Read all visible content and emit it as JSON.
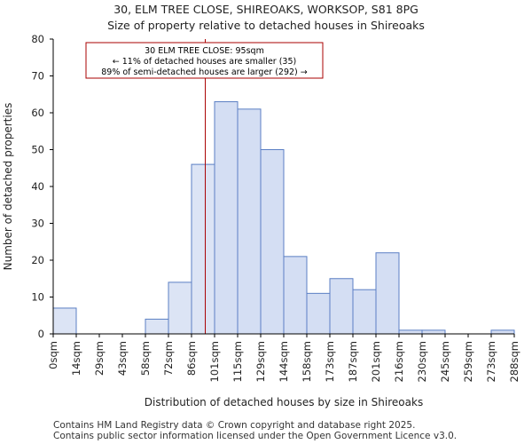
{
  "title_line1": "30, ELM TREE CLOSE, SHIREOAKS, WORKSOP, S81 8PG",
  "title_line2": "Size of property relative to detached houses in Shireoaks",
  "footer_line1": "Contains HM Land Registry data © Crown copyright and database right 2025.",
  "footer_line2": "Contains public sector information licensed under the Open Government Licence v3.0.",
  "chart_data": {
    "type": "bar",
    "title": "Size of property relative to detached houses in Shireoaks",
    "xlabel": "Distribution of detached houses by size in Shireoaks",
    "ylabel": "Number of detached properties",
    "x_tick_labels": [
      "0sqm",
      "14sqm",
      "29sqm",
      "43sqm",
      "58sqm",
      "72sqm",
      "86sqm",
      "101sqm",
      "115sqm",
      "129sqm",
      "144sqm",
      "158sqm",
      "173sqm",
      "187sqm",
      "201sqm",
      "216sqm",
      "230sqm",
      "245sqm",
      "259sqm",
      "273sqm",
      "288sqm"
    ],
    "bin_edges": [
      0,
      14.4,
      28.8,
      43.2,
      57.6,
      72,
      86.4,
      100.8,
      115.2,
      129.6,
      144,
      158.4,
      172.8,
      187.2,
      201.6,
      216,
      230.4,
      244.8,
      259.2,
      273.6,
      288
    ],
    "values": [
      7,
      0,
      0,
      0,
      4,
      14,
      46,
      63,
      61,
      50,
      21,
      11,
      15,
      12,
      22,
      1,
      1,
      0,
      0,
      1
    ],
    "highlight_bins": [
      7,
      8,
      9,
      10,
      11,
      12,
      13,
      14,
      15,
      16,
      17,
      18,
      19
    ],
    "ylim": [
      0,
      80
    ],
    "yticks": [
      0,
      10,
      20,
      30,
      40,
      50,
      60,
      70,
      80
    ],
    "grid": false,
    "colors": {
      "bar_fill": "#dce4f5",
      "bar_fill_highlight": "#d4def3",
      "bar_stroke": "#5b7fc4",
      "marker": "#aa0000",
      "axis": "#000000"
    },
    "property_marker": {
      "value": 95
    },
    "annotation": {
      "lines": [
        "30 ELM TREE CLOSE: 95sqm",
        "← 11% of detached houses are smaller (35)",
        "89% of semi-detached houses are larger (292) →"
      ]
    }
  }
}
